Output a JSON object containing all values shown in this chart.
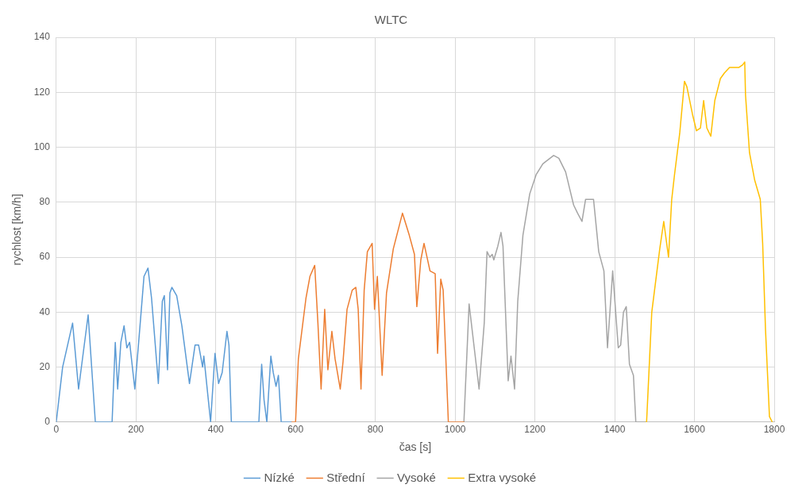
{
  "chart_data": {
    "type": "line",
    "title": "WLTC",
    "xlabel": "čas [s]",
    "ylabel": "rychlost [km/h]",
    "xlim": [
      0,
      1800
    ],
    "xticks": [
      0,
      200,
      400,
      600,
      800,
      1000,
      1200,
      1400,
      1600,
      1800
    ],
    "ylim": [
      0,
      140
    ],
    "yticks": [
      0,
      20,
      40,
      60,
      80,
      100,
      120,
      140
    ],
    "grid": true,
    "legend": "bottom",
    "marker": "none",
    "line_style": "solid",
    "series": [
      {
        "name": "Nízké",
        "color": "#5b9bd5",
        "x": [
          0,
          16,
          41,
          56,
          80,
          98,
          140,
          148,
          154,
          162,
          170,
          177,
          184,
          197,
          210,
          220,
          230,
          239,
          256,
          266,
          271,
          279,
          285,
          290,
          302,
          315,
          334,
          348,
          357,
          367,
          370,
          387,
          398,
          407,
          416,
          428,
          433,
          439,
          508,
          515,
          521,
          528,
          538,
          544,
          551,
          557,
          564,
          589
        ],
        "values": [
          0,
          20,
          36,
          12,
          39,
          0,
          0,
          29,
          12,
          29,
          35,
          27,
          29,
          12,
          35,
          53,
          56,
          45,
          14,
          44,
          46,
          19,
          47,
          49,
          46,
          35,
          14,
          28,
          28,
          20,
          24,
          0,
          25,
          14,
          18,
          33,
          28,
          0,
          0,
          21,
          8,
          0,
          24,
          18,
          13,
          17,
          0,
          0
        ]
      },
      {
        "name": "Střední",
        "color": "#ed7d31",
        "x": [
          589,
          600,
          607,
          626,
          636,
          648,
          656,
          664,
          673,
          681,
          691,
          699,
          712,
          719,
          729,
          742,
          751,
          757,
          764,
          772,
          780,
          792,
          798,
          805,
          817,
          828,
          845,
          868,
          885,
          898,
          904,
          914,
          922,
          937,
          950,
          956,
          964,
          970,
          983,
          1022
        ],
        "values": [
          0,
          0,
          23,
          45,
          53,
          57,
          36,
          12,
          41,
          19,
          33,
          23,
          12,
          22,
          41,
          48,
          49,
          41,
          12,
          48,
          62,
          65,
          41,
          53,
          17,
          47,
          63,
          76,
          68,
          61,
          42,
          59,
          65,
          55,
          54,
          25,
          52,
          48,
          0,
          0
        ]
      },
      {
        "name": "Vysoké",
        "color": "#a5a5a5",
        "x": [
          1022,
          1023,
          1029,
          1035,
          1060,
          1073,
          1080,
          1087,
          1093,
          1097,
          1107,
          1115,
          1120,
          1133,
          1140,
          1149,
          1157,
          1170,
          1187,
          1203,
          1220,
          1247,
          1260,
          1277,
          1297,
          1307,
          1318,
          1327,
          1347,
          1360,
          1373,
          1382,
          1395,
          1409,
          1415,
          1422,
          1429,
          1437,
          1447,
          1453,
          1477
        ],
        "values": [
          0,
          0,
          23,
          43,
          12,
          36,
          62,
          60,
          61,
          59,
          64,
          69,
          64,
          15,
          24,
          12,
          44,
          68,
          83,
          90,
          94,
          97,
          96,
          91,
          79,
          76,
          73,
          81,
          81,
          62,
          55,
          27,
          55,
          27,
          28,
          40,
          42,
          21,
          17,
          0,
          0
        ]
      },
      {
        "name": "Extra vysoké",
        "color": "#ffc000",
        "x": [
          1477,
          1480,
          1493,
          1513,
          1523,
          1535,
          1543,
          1550,
          1563,
          1575,
          1581,
          1595,
          1605,
          1615,
          1623,
          1631,
          1641,
          1651,
          1665,
          1675,
          1688,
          1701,
          1711,
          1721,
          1726,
          1728,
          1738,
          1751,
          1765,
          1771,
          1778,
          1788,
          1795
        ],
        "values": [
          0,
          0,
          40,
          63,
          73,
          60,
          81,
          90,
          105,
          124,
          122,
          112,
          106,
          107,
          117,
          107,
          104,
          117,
          125,
          127,
          129,
          129,
          129,
          130,
          131,
          119,
          98,
          88,
          81,
          65,
          34,
          2,
          0
        ]
      }
    ]
  }
}
